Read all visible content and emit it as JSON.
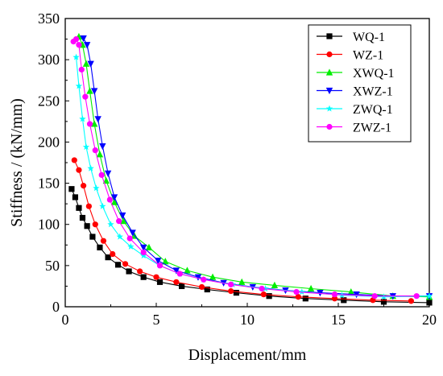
{
  "chart_data": {
    "type": "line",
    "title": "",
    "xlabel": "Displacement/mm",
    "ylabel": "Stiffness / (kN/mm)",
    "xlim": [
      0,
      20
    ],
    "ylim": [
      0,
      350
    ],
    "xticks": [
      0,
      5,
      10,
      15,
      20
    ],
    "yticks": [
      0,
      50,
      100,
      150,
      200,
      250,
      300,
      350
    ],
    "grid": false,
    "legend_position": "top-right",
    "series": [
      {
        "name": "WQ-1",
        "color": "#000000",
        "marker": "square",
        "x": [
          0.35,
          0.55,
          0.75,
          0.95,
          1.2,
          1.5,
          1.9,
          2.35,
          2.9,
          3.5,
          4.3,
          5.2,
          6.4,
          7.8,
          9.4,
          11.2,
          13.2,
          15.3,
          17.5,
          20.0
        ],
        "y": [
          143,
          133,
          120,
          108,
          98,
          85,
          72,
          60,
          51,
          43,
          36,
          30,
          25,
          21,
          17,
          13,
          10,
          8,
          6,
          5
        ]
      },
      {
        "name": "WZ-1",
        "color": "#ff0000",
        "marker": "circle",
        "x": [
          0.5,
          0.75,
          1.0,
          1.3,
          1.65,
          2.1,
          2.6,
          3.3,
          4.1,
          5.0,
          6.1,
          7.5,
          9.1,
          10.9,
          12.8,
          14.8,
          16.9,
          19.0
        ],
        "y": [
          178,
          166,
          147,
          122,
          100,
          80,
          64,
          52,
          43,
          36,
          30,
          24,
          19,
          15,
          12,
          10,
          8,
          7
        ]
      },
      {
        "name": "XWQ-1",
        "color": "#00ee00",
        "marker": "triangle-up",
        "x": [
          0.75,
          0.95,
          1.15,
          1.35,
          1.6,
          1.9,
          2.25,
          2.7,
          3.2,
          3.8,
          4.6,
          5.5,
          6.7,
          8.1,
          9.7,
          11.5,
          13.5,
          15.7,
          18.0,
          20.0
        ],
        "y": [
          328,
          318,
          295,
          262,
          222,
          185,
          153,
          127,
          104,
          86,
          72,
          55,
          44,
          36,
          30,
          26,
          22,
          18,
          13,
          12
        ]
      },
      {
        "name": "XWZ-1",
        "color": "#0000ff",
        "marker": "triangle-down",
        "x": [
          1.0,
          1.2,
          1.4,
          1.6,
          1.8,
          2.05,
          2.35,
          2.7,
          3.15,
          3.7,
          4.3,
          5.1,
          6.1,
          7.3,
          8.7,
          10.3,
          12.1,
          14.0,
          16.0,
          18.0,
          20.0
        ],
        "y": [
          326,
          318,
          295,
          262,
          228,
          195,
          162,
          133,
          111,
          90,
          72,
          56,
          44,
          36,
          29,
          24,
          20,
          17,
          15,
          13,
          13
        ]
      },
      {
        "name": "ZWQ-1",
        "color": "#00ffff",
        "marker": "star",
        "x": [
          0.6,
          0.75,
          0.95,
          1.15,
          1.4,
          1.7,
          2.05,
          2.5,
          3.0,
          3.6,
          4.3,
          5.2,
          6.3,
          7.6,
          9.2,
          11.0,
          13.0,
          15.2,
          17.5,
          20.0
        ],
        "y": [
          303,
          268,
          228,
          194,
          168,
          144,
          122,
          100,
          85,
          73,
          62,
          50,
          40,
          33,
          27,
          22,
          18,
          14,
          12,
          13
        ]
      },
      {
        "name": "ZWZ-1",
        "color": "#ff00ff",
        "marker": "circle",
        "x": [
          0.45,
          0.6,
          0.75,
          0.9,
          1.1,
          1.35,
          1.65,
          2.0,
          2.45,
          2.95,
          3.55,
          4.3,
          5.2,
          6.3,
          7.6,
          9.1,
          10.8,
          12.7,
          14.8,
          17.0,
          19.3
        ],
        "y": [
          322,
          325,
          318,
          288,
          255,
          222,
          190,
          160,
          130,
          104,
          83,
          66,
          50,
          40,
          33,
          27,
          22,
          18,
          15,
          13,
          13
        ]
      }
    ]
  }
}
